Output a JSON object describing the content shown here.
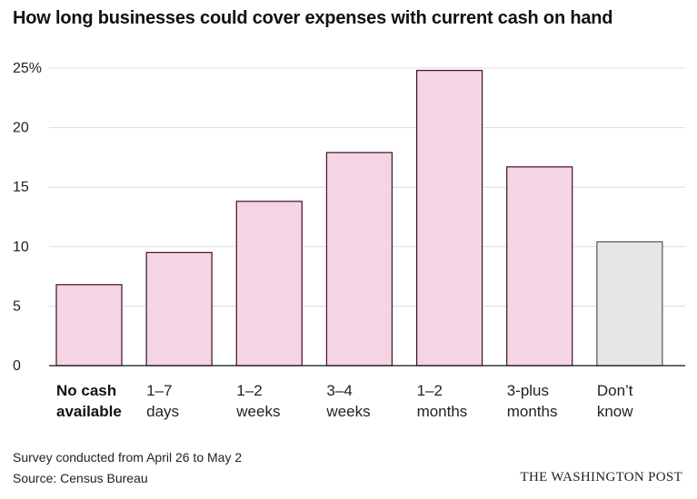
{
  "chart_data": {
    "type": "bar",
    "title": "How long businesses could cover expenses with current cash on hand",
    "categories": [
      [
        "No cash",
        "available"
      ],
      [
        "1–7",
        "days"
      ],
      [
        "1–2",
        "weeks"
      ],
      [
        "3–4",
        "weeks"
      ],
      [
        "1–2",
        "months"
      ],
      [
        "3-plus",
        "months"
      ],
      [
        "Don’t",
        "know"
      ]
    ],
    "values": [
      6.8,
      9.5,
      13.8,
      17.9,
      24.8,
      16.7,
      10.4
    ],
    "highlight_category_index": 0,
    "bar_colors": [
      "#f5d5e4",
      "#f5d5e4",
      "#f5d5e4",
      "#f5d5e4",
      "#f5d5e4",
      "#f5d5e4",
      "#e6e6e8"
    ],
    "bar_outline_colors": [
      "#3d0f2c",
      "#3d0f2c",
      "#3d0f2c",
      "#3d0f2c",
      "#3d0f2c",
      "#3d0f2c",
      "#555555"
    ],
    "yticks": [
      0,
      5,
      10,
      15,
      20,
      25
    ],
    "ytick_labels": [
      "0",
      "5",
      "10",
      "15",
      "20",
      "25%"
    ],
    "ylim": [
      0,
      25.5
    ],
    "xlabel": "",
    "ylabel": "",
    "grid": true
  },
  "footer": {
    "note": "Survey conducted from April 26 to May 2",
    "source": "Source: Census Bureau",
    "credit": "THE WASHINGTON POST"
  }
}
